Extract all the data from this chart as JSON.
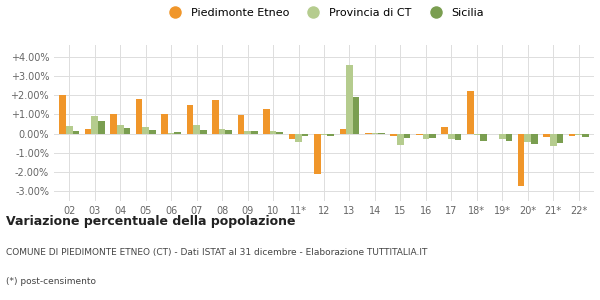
{
  "categories": [
    "02",
    "03",
    "04",
    "05",
    "06",
    "07",
    "08",
    "09",
    "10",
    "11*",
    "12",
    "13",
    "14",
    "15",
    "16",
    "17",
    "18*",
    "19*",
    "20*",
    "21*",
    "22*"
  ],
  "piedimonte": [
    2.0,
    0.25,
    1.0,
    1.8,
    1.02,
    1.48,
    1.72,
    0.95,
    1.3,
    -0.28,
    -2.1,
    0.22,
    0.04,
    -0.1,
    -0.06,
    0.35,
    2.2,
    0.0,
    -2.7,
    -0.18,
    -0.15
  ],
  "provincia": [
    0.4,
    0.9,
    0.45,
    0.35,
    0.05,
    0.45,
    0.25,
    0.15,
    0.15,
    -0.45,
    -0.05,
    3.55,
    0.04,
    -0.6,
    -0.28,
    -0.3,
    -0.05,
    -0.28,
    -0.42,
    -0.65,
    -0.08
  ],
  "sicilia": [
    0.15,
    0.65,
    0.3,
    0.2,
    0.1,
    0.2,
    0.2,
    0.15,
    0.1,
    -0.1,
    -0.1,
    1.9,
    0.01,
    -0.25,
    -0.25,
    -0.35,
    -0.4,
    -0.4,
    -0.55,
    -0.5,
    -0.2
  ],
  "color_piedimonte": "#f0962a",
  "color_provincia": "#b5cc8e",
  "color_sicilia": "#7a9e50",
  "title": "Variazione percentuale della popolazione",
  "subtitle": "COMUNE DI PIEDIMONTE ETNEO (CT) - Dati ISTAT al 31 dicembre - Elaborazione TUTTITALIA.IT",
  "footnote": "(*) post-censimento",
  "bg_color": "#ffffff",
  "grid_color": "#dddddd",
  "ylim_min": -3.5,
  "ylim_max": 4.6,
  "yticks": [
    -3.0,
    -2.0,
    -1.0,
    0.0,
    1.0,
    2.0,
    3.0,
    4.0
  ],
  "ytick_labels": [
    "-3.00%",
    "-2.00%",
    "-1.00%",
    "0.00%",
    "+1.00%",
    "+2.00%",
    "+3.00%",
    "+4.00%"
  ]
}
